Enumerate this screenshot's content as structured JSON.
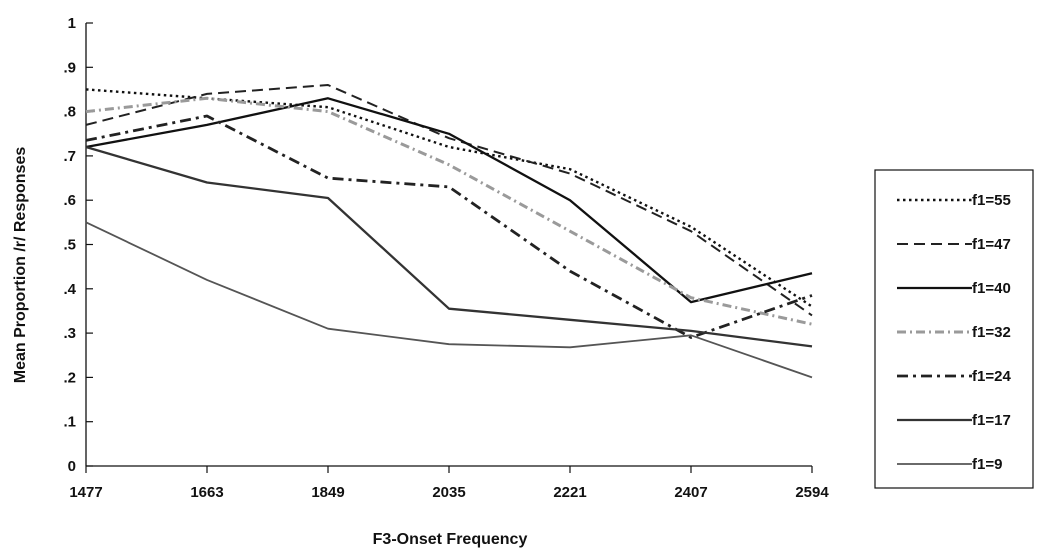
{
  "chart_data": {
    "type": "line",
    "xlabel": "F3-Onset Frequency",
    "ylabel": "Mean Proportion /r/ Responses",
    "categories": [
      "1477",
      "1663",
      "1849",
      "2035",
      "2221",
      "2407",
      "2594"
    ],
    "ylim": [
      0,
      1
    ],
    "yticks": [
      0,
      0.1,
      0.2,
      0.3,
      0.4,
      0.5,
      0.6,
      0.7,
      0.8,
      0.9,
      1
    ],
    "ytick_labels": [
      "0",
      ".1",
      ".2",
      ".3",
      ".4",
      ".5",
      ".6",
      ".7",
      ".8",
      ".9",
      "1"
    ],
    "grid": false,
    "legend_position": "right",
    "series": [
      {
        "name": "f1=55",
        "values": [
          0.85,
          0.83,
          0.81,
          0.72,
          0.67,
          0.54,
          0.36
        ],
        "color": "#111111",
        "style": "dotted"
      },
      {
        "name": "f1=47",
        "values": [
          0.77,
          0.84,
          0.86,
          0.74,
          0.66,
          0.53,
          0.34
        ],
        "color": "#222222",
        "style": "dashed"
      },
      {
        "name": "f1=40",
        "values": [
          0.72,
          0.77,
          0.83,
          0.75,
          0.6,
          0.37,
          0.435
        ],
        "color": "#111111",
        "style": "solid"
      },
      {
        "name": "f1=32",
        "values": [
          0.8,
          0.83,
          0.8,
          0.68,
          0.53,
          0.38,
          0.32
        ],
        "color": "#9a9a9a",
        "style": "dashdot-gray"
      },
      {
        "name": "f1=24",
        "values": [
          0.735,
          0.79,
          0.65,
          0.63,
          0.44,
          0.29,
          0.385
        ],
        "color": "#222222",
        "style": "dashdot"
      },
      {
        "name": "f1=17",
        "values": [
          0.72,
          0.64,
          0.605,
          0.355,
          0.33,
          0.305,
          0.27
        ],
        "color": "#333333",
        "style": "solid"
      },
      {
        "name": "f1=9",
        "values": [
          0.55,
          0.42,
          0.31,
          0.275,
          0.268,
          0.295,
          0.2
        ],
        "color": "#555555",
        "style": "solid-thin"
      }
    ]
  }
}
